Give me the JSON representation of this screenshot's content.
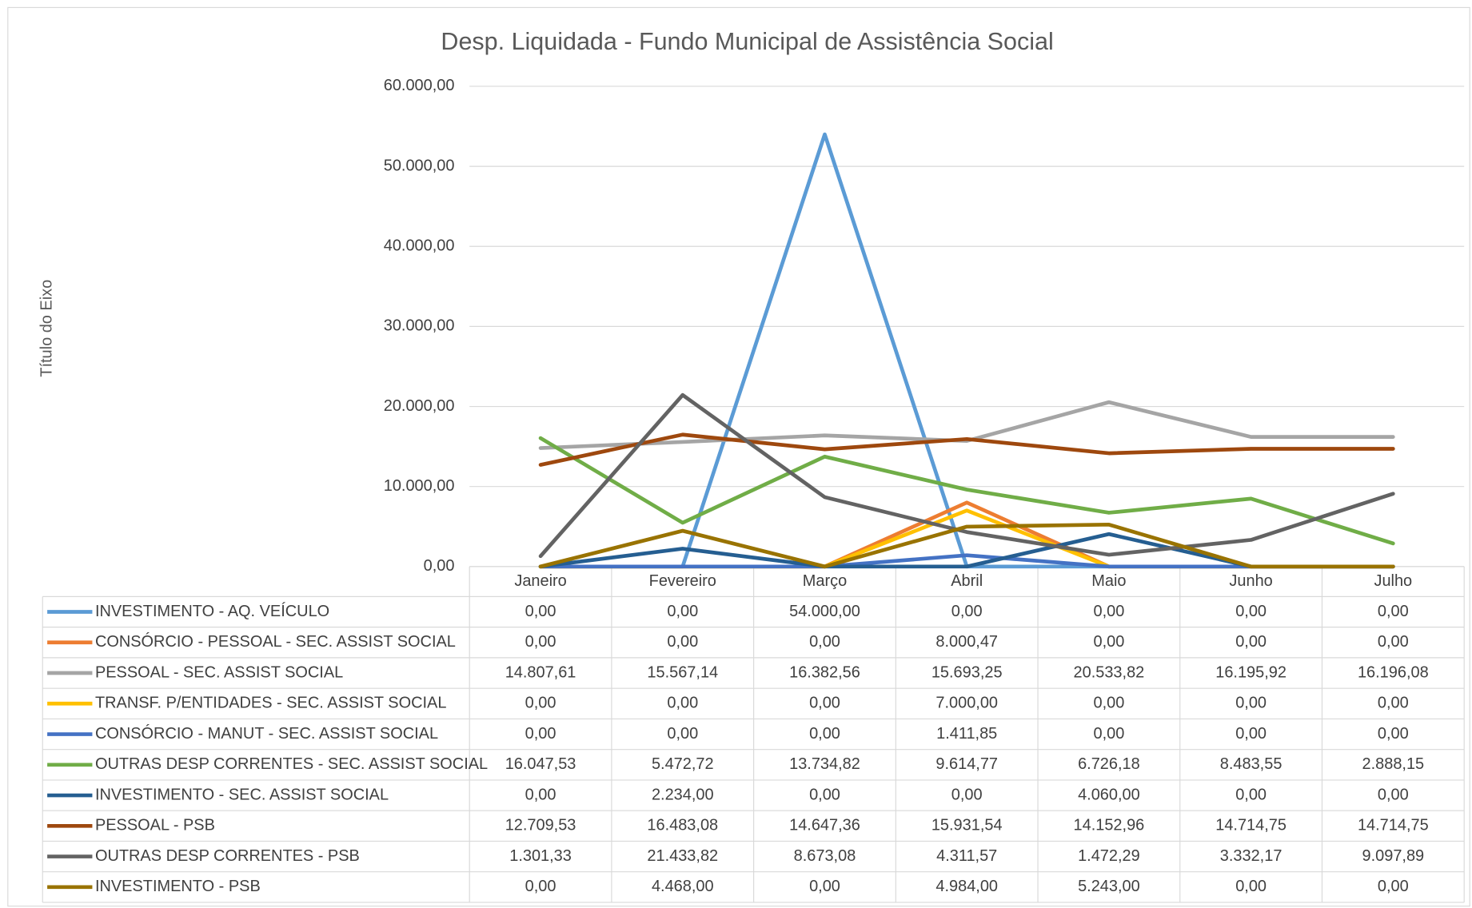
{
  "chart_data": {
    "type": "line",
    "title": "Desp. Liquidada - Fundo Municipal de Assistência Social",
    "y_label": "Título do Eixo",
    "categories": [
      "Janeiro",
      "Fevereiro",
      "Março",
      "Abril",
      "Maio",
      "Junho",
      "Julho"
    ],
    "ylim": [
      0,
      60000
    ],
    "yticks": [
      {
        "value": 0,
        "label": "0,00"
      },
      {
        "value": 10000,
        "label": "10.000,00"
      },
      {
        "value": 20000,
        "label": "20.000,00"
      },
      {
        "value": 30000,
        "label": "30.000,00"
      },
      {
        "value": 40000,
        "label": "40.000,00"
      },
      {
        "value": 50000,
        "label": "50.000,00"
      },
      {
        "value": 60000,
        "label": "60.000,00"
      }
    ],
    "grid": true,
    "series": [
      {
        "name": "INVESTIMENTO - AQ. VEÍCULO",
        "color": "#5b9bd5",
        "values": [
          0,
          0,
          54000,
          0,
          0,
          0,
          0
        ],
        "value_labels": [
          "0,00",
          "0,00",
          "54.000,00",
          "0,00",
          "0,00",
          "0,00",
          "0,00"
        ]
      },
      {
        "name": "CONSÓRCIO - PESSOAL - SEC. ASSIST SOCIAL",
        "color": "#ed7d31",
        "values": [
          0,
          0,
          0,
          8000.47,
          0,
          0,
          0
        ],
        "value_labels": [
          "0,00",
          "0,00",
          "0,00",
          "8.000,47",
          "0,00",
          "0,00",
          "0,00"
        ]
      },
      {
        "name": "PESSOAL - SEC. ASSIST SOCIAL",
        "color": "#a5a5a5",
        "values": [
          14807.61,
          15567.14,
          16382.56,
          15693.25,
          20533.82,
          16195.92,
          16196.08
        ],
        "value_labels": [
          "14.807,61",
          "15.567,14",
          "16.382,56",
          "15.693,25",
          "20.533,82",
          "16.195,92",
          "16.196,08"
        ]
      },
      {
        "name": "TRANSF. P/ENTIDADES - SEC. ASSIST SOCIAL",
        "color": "#ffc000",
        "values": [
          0,
          0,
          0,
          7000,
          0,
          0,
          0
        ],
        "value_labels": [
          "0,00",
          "0,00",
          "0,00",
          "7.000,00",
          "0,00",
          "0,00",
          "0,00"
        ]
      },
      {
        "name": "CONSÓRCIO - MANUT - SEC. ASSIST SOCIAL",
        "color": "#4472c4",
        "values": [
          0,
          0,
          0,
          1411.85,
          0,
          0,
          0
        ],
        "value_labels": [
          "0,00",
          "0,00",
          "0,00",
          "1.411,85",
          "0,00",
          "0,00",
          "0,00"
        ]
      },
      {
        "name": "OUTRAS DESP CORRENTES - SEC. ASSIST SOCIAL",
        "color": "#70ad47",
        "values": [
          16047.53,
          5472.72,
          13734.82,
          9614.77,
          6726.18,
          8483.55,
          2888.15
        ],
        "value_labels": [
          "16.047,53",
          "5.472,72",
          "13.734,82",
          "9.614,77",
          "6.726,18",
          "8.483,55",
          "2.888,15"
        ]
      },
      {
        "name": "INVESTIMENTO - SEC. ASSIST SOCIAL",
        "color": "#255e91",
        "values": [
          0,
          2234,
          0,
          0,
          4060,
          0,
          0
        ],
        "value_labels": [
          "0,00",
          "2.234,00",
          "0,00",
          "0,00",
          "4.060,00",
          "0,00",
          "0,00"
        ]
      },
      {
        "name": "PESSOAL - PSB",
        "color": "#9e480e",
        "values": [
          12709.53,
          16483.08,
          14647.36,
          15931.54,
          14152.96,
          14714.75,
          14714.75
        ],
        "value_labels": [
          "12.709,53",
          "16.483,08",
          "14.647,36",
          "15.931,54",
          "14.152,96",
          "14.714,75",
          "14.714,75"
        ]
      },
      {
        "name": "OUTRAS DESP CORRENTES - PSB",
        "color": "#636363",
        "values": [
          1301.33,
          21433.82,
          8673.08,
          4311.57,
          1472.29,
          3332.17,
          9097.89
        ],
        "value_labels": [
          "1.301,33",
          "21.433,82",
          "8.673,08",
          "4.311,57",
          "1.472,29",
          "3.332,17",
          "9.097,89"
        ]
      },
      {
        "name": "INVESTIMENTO - PSB",
        "color": "#997300",
        "values": [
          0,
          4468,
          0,
          4984,
          5243,
          0,
          0
        ],
        "value_labels": [
          "0,00",
          "4.468,00",
          "0,00",
          "4.984,00",
          "5.243,00",
          "0,00",
          "0,00"
        ]
      }
    ]
  }
}
